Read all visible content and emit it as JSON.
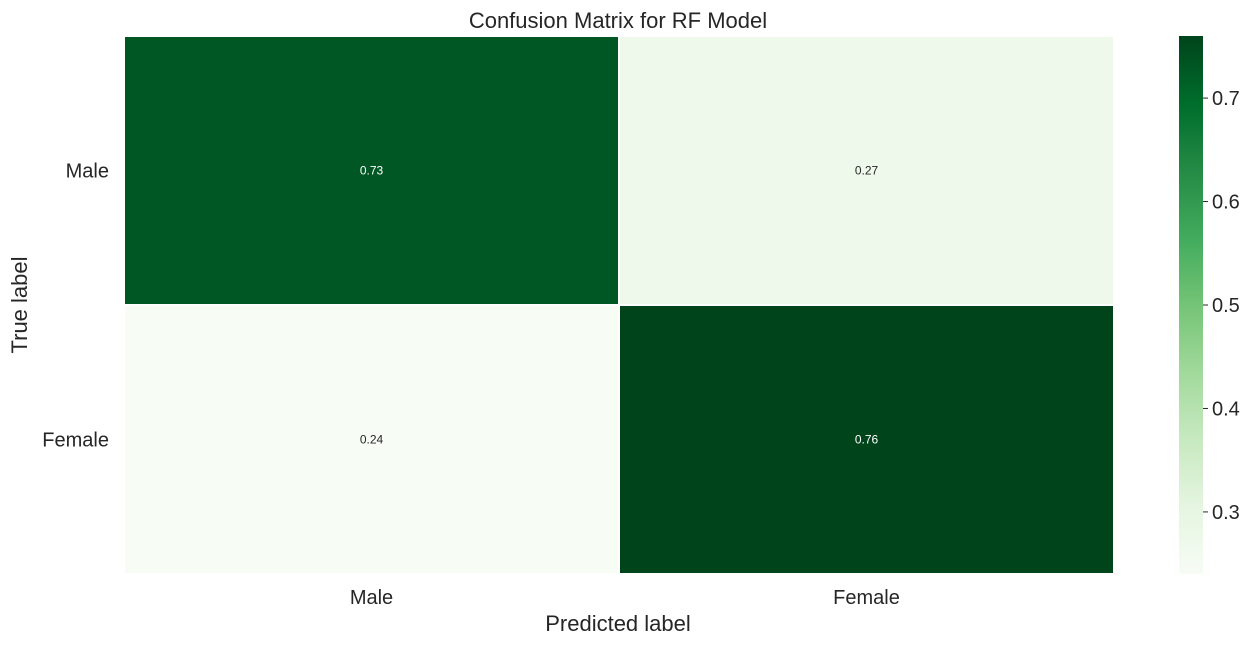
{
  "chart_data": {
    "type": "heatmap",
    "title": "Confusion Matrix for RF Model",
    "xlabel": "Predicted label",
    "ylabel": "True label",
    "x_categories": [
      "Male",
      "Female"
    ],
    "y_categories": [
      "Male",
      "Female"
    ],
    "values": [
      [
        0.73,
        0.27
      ],
      [
        0.24,
        0.76
      ]
    ],
    "annotations": [
      [
        "0.73",
        "0.27"
      ],
      [
        "0.24",
        "0.76"
      ]
    ],
    "colormap": "Greens",
    "colorbar": {
      "vmin": 0.24,
      "vmax": 0.76,
      "ticks": [
        0.3,
        0.4,
        0.5,
        0.6,
        0.7
      ],
      "tick_labels": [
        "0.3",
        "0.4",
        "0.5",
        "0.6",
        "0.7"
      ]
    },
    "gap_color": "#ffffff"
  }
}
